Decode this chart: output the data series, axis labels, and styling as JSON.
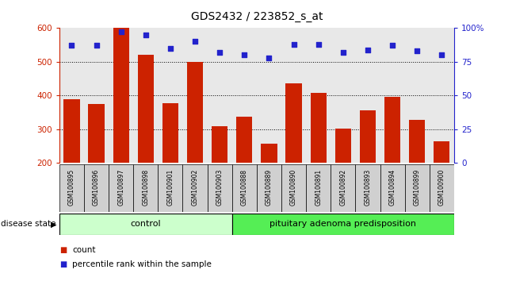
{
  "title": "GDS2432 / 223852_s_at",
  "samples": [
    "GSM100895",
    "GSM100896",
    "GSM100897",
    "GSM100898",
    "GSM100901",
    "GSM100902",
    "GSM100903",
    "GSM100888",
    "GSM100889",
    "GSM100890",
    "GSM100891",
    "GSM100892",
    "GSM100893",
    "GSM100894",
    "GSM100899",
    "GSM100900"
  ],
  "counts": [
    390,
    375,
    600,
    520,
    378,
    500,
    310,
    338,
    258,
    437,
    408,
    303,
    355,
    395,
    327,
    265
  ],
  "percentiles": [
    87,
    87,
    97,
    95,
    85,
    90,
    82,
    80,
    78,
    88,
    88,
    82,
    84,
    87,
    83,
    80
  ],
  "control_count": 7,
  "disease_count": 9,
  "ylim_left": [
    200,
    600
  ],
  "ylim_right": [
    0,
    100
  ],
  "yticks_left": [
    200,
    300,
    400,
    500,
    600
  ],
  "yticks_right": [
    0,
    25,
    50,
    75,
    100
  ],
  "bar_color": "#cc2200",
  "dot_color": "#2222cc",
  "control_color": "#ccffcc",
  "disease_color": "#55ee55",
  "grid_color": "#000000",
  "bg_color": "#ffffff",
  "plot_bg_color": "#e8e8e8",
  "label_box_color": "#d0d0d0",
  "tick_color_left": "#cc2200",
  "tick_color_right": "#2222cc",
  "label_count": "count",
  "label_percentile": "percentile rank within the sample",
  "disease_state_label": "disease state",
  "group_control": "control",
  "group_disease": "pituitary adenoma predisposition",
  "grid_lines": [
    300,
    400,
    500
  ]
}
